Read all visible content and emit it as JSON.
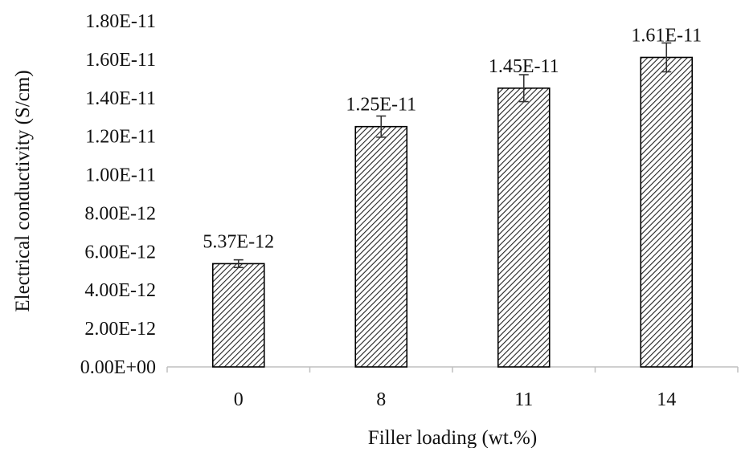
{
  "chart_data": {
    "type": "bar",
    "categories": [
      "0",
      "8",
      "11",
      "14"
    ],
    "values": [
      5.37e-12,
      1.25e-11,
      1.45e-11,
      1.61e-11
    ],
    "error": [
      2e-13,
      5.5e-13,
      7e-13,
      7.5e-13
    ],
    "data_labels": [
      "5.37E-12",
      "1.25E-11",
      "1.45E-11",
      "1.61E-11"
    ],
    "y_ticks": [
      0,
      2e-12,
      4e-12,
      6e-12,
      8e-12,
      1e-11,
      1.2e-11,
      1.4e-11,
      1.6e-11,
      1.8e-11
    ],
    "y_tick_labels": [
      "0.00E+00",
      "2.00E-12",
      "4.00E-12",
      "6.00E-12",
      "8.00E-12",
      "1.00E-11",
      "1.20E-11",
      "1.40E-11",
      "1.60E-11",
      "1.80E-11"
    ],
    "ylim": [
      0,
      1.8e-11
    ],
    "xlabel": "Filler loading (wt.%)",
    "ylabel": "Electrical conductivity (S/cm)",
    "title": "",
    "grid": false,
    "bar_fill": "diagonal-hatch",
    "bar_stroke": "#000000",
    "axis_color": "#bfbfbf"
  }
}
